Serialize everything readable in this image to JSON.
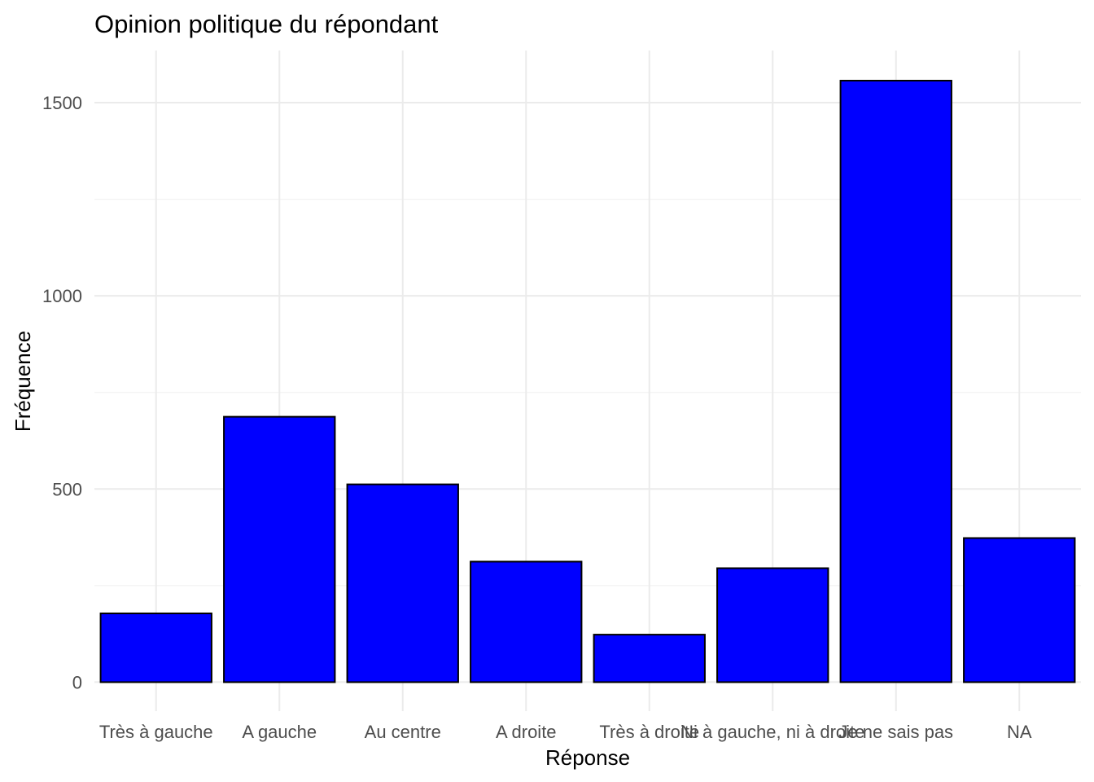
{
  "chart_data": {
    "type": "bar",
    "title": "Opinion politique du répondant",
    "xlabel": "Réponse",
    "ylabel": "Fréquence",
    "categories": [
      "Très à gauche",
      "A gauche",
      "Au centre",
      "A droite",
      "Très à droite",
      "Ni à gauche, ni à droite",
      "Je ne sais pas",
      "NA"
    ],
    "values": [
      178,
      687,
      512,
      312,
      123,
      295,
      1557,
      373
    ],
    "ylim": [
      -75,
      1635
    ],
    "yticks": [
      0,
      500,
      1000,
      1500
    ],
    "ytick_labels": [
      "0",
      "500",
      "1000",
      "1500"
    ],
    "grid": true,
    "colors": {
      "bar_fill": "#0000ff",
      "bar_stroke": "#000000"
    }
  }
}
